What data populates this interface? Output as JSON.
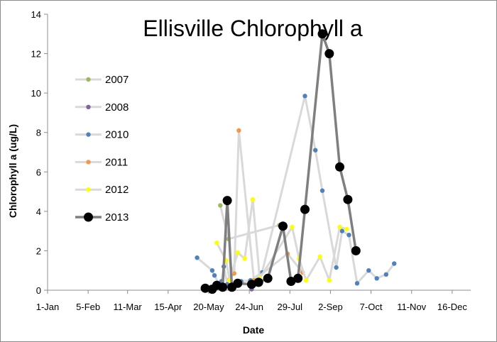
{
  "chart_data": {
    "type": "line",
    "title": "Ellisville Chlorophyll a",
    "xlabel": "Date",
    "ylabel": "Chlorophyll a (ug/L)",
    "x_axis": {
      "type": "date",
      "range": [
        "2013-01-01",
        "2013-12-31"
      ],
      "ticks": [
        {
          "date": "2013-01-01",
          "label": "1-Jan"
        },
        {
          "date": "2013-02-05",
          "label": "5-Feb"
        },
        {
          "date": "2013-03-11",
          "label": "11-Mar"
        },
        {
          "date": "2013-04-15",
          "label": "15-Apr"
        },
        {
          "date": "2013-05-20",
          "label": "20-May"
        },
        {
          "date": "2013-06-24",
          "label": "24-Jun"
        },
        {
          "date": "2013-07-29",
          "label": "29-Jul"
        },
        {
          "date": "2013-09-02",
          "label": "2-Sep"
        },
        {
          "date": "2013-10-07",
          "label": "7-Oct"
        },
        {
          "date": "2013-11-11",
          "label": "11-Nov"
        },
        {
          "date": "2013-12-16",
          "label": "16-Dec"
        }
      ]
    },
    "ylim": [
      0,
      14
    ],
    "y_ticks": [
      0,
      2,
      4,
      6,
      8,
      10,
      12,
      14
    ],
    "grid": false,
    "legend": {
      "placement": "left-inside"
    },
    "series": [
      {
        "name": "2007",
        "line_color": "#d9d9d9",
        "marker_color": "#9bbb59",
        "points": [
          {
            "x": "2013-05-30",
            "y": 4.3
          },
          {
            "x": "2013-06-06",
            "y": 2.6
          },
          {
            "x": "2013-07-20",
            "y": 3.3
          }
        ]
      },
      {
        "name": "2008",
        "line_color": "#d9d9d9",
        "marker_color": "#8064a2",
        "points": [
          {
            "x": "2013-06-26",
            "y": 0.05
          }
        ]
      },
      {
        "name": "2010",
        "line_color": "#d9d9d9",
        "marker_color": "#4f81bd",
        "points": [
          {
            "x": "2013-05-10",
            "y": 1.65
          },
          {
            "x": "2013-05-23",
            "y": 1.0
          },
          {
            "x": "2013-05-25",
            "y": 0.75
          },
          {
            "x": "2013-05-29",
            "y": 0.3
          },
          {
            "x": "2013-05-31",
            "y": 0.45
          },
          {
            "x": "2013-06-02",
            "y": 1.2
          },
          {
            "x": "2013-06-05",
            "y": 0.3
          },
          {
            "x": "2013-06-12",
            "y": 0.25
          },
          {
            "x": "2013-06-17",
            "y": 0.45
          },
          {
            "x": "2013-06-25",
            "y": 0.5
          },
          {
            "x": "2013-07-05",
            "y": 0.9
          },
          {
            "x": "2013-08-11",
            "y": 9.85
          },
          {
            "x": "2013-08-20",
            "y": 7.1
          },
          {
            "x": "2013-08-26",
            "y": 5.05
          },
          {
            "x": "2013-09-07",
            "y": 1.15
          },
          {
            "x": "2013-09-12",
            "y": 3.0
          },
          {
            "x": "2013-09-18",
            "y": 2.8
          },
          {
            "x": "2013-09-25",
            "y": 0.35
          },
          {
            "x": "2013-10-05",
            "y": 1.0
          },
          {
            "x": "2013-10-12",
            "y": 0.6
          },
          {
            "x": "2013-10-20",
            "y": 0.8
          },
          {
            "x": "2013-10-27",
            "y": 1.35
          }
        ]
      },
      {
        "name": "2011",
        "line_color": "#d9d9d9",
        "marker_color": "#f79646",
        "points": [
          {
            "x": "2013-06-07",
            "y": 0.55
          },
          {
            "x": "2013-06-11",
            "y": 0.85
          },
          {
            "x": "2013-06-15",
            "y": 8.1
          },
          {
            "x": "2013-06-28",
            "y": 0.5
          },
          {
            "x": "2013-07-27",
            "y": 1.85
          },
          {
            "x": "2013-08-09",
            "y": 0.9
          }
        ]
      },
      {
        "name": "2012",
        "line_color": "#d9d9d9",
        "marker_color": "#ffff00",
        "points": [
          {
            "x": "2013-05-27",
            "y": 2.4
          },
          {
            "x": "2013-06-04",
            "y": 1.5
          },
          {
            "x": "2013-06-07",
            "y": 0.5
          },
          {
            "x": "2013-06-14",
            "y": 1.9
          },
          {
            "x": "2013-06-20",
            "y": 1.6
          },
          {
            "x": "2013-06-27",
            "y": 4.6
          },
          {
            "x": "2013-07-03",
            "y": 0.6
          },
          {
            "x": "2013-07-31",
            "y": 3.2
          },
          {
            "x": "2013-08-06",
            "y": 1.6
          },
          {
            "x": "2013-08-12",
            "y": 0.5
          },
          {
            "x": "2013-08-24",
            "y": 1.7
          },
          {
            "x": "2013-09-01",
            "y": 0.5
          },
          {
            "x": "2013-09-10",
            "y": 3.2
          },
          {
            "x": "2013-09-16",
            "y": 3.1
          }
        ]
      },
      {
        "name": "2013",
        "line_color": "#7f7f7f",
        "marker_color": "#000000",
        "points": [
          {
            "x": "2013-05-17",
            "y": 0.1
          },
          {
            "x": "2013-05-23",
            "y": 0.05
          },
          {
            "x": "2013-05-27",
            "y": 0.25
          },
          {
            "x": "2013-06-01",
            "y": 0.15
          },
          {
            "x": "2013-06-05",
            "y": 4.55
          },
          {
            "x": "2013-06-09",
            "y": 0.15
          },
          {
            "x": "2013-06-14",
            "y": 0.35
          },
          {
            "x": "2013-06-26",
            "y": 0.3
          },
          {
            "x": "2013-07-02",
            "y": 0.4
          },
          {
            "x": "2013-07-10",
            "y": 0.6
          },
          {
            "x": "2013-07-23",
            "y": 3.25
          },
          {
            "x": "2013-07-30",
            "y": 0.45
          },
          {
            "x": "2013-08-05",
            "y": 0.6
          },
          {
            "x": "2013-08-11",
            "y": 4.1
          },
          {
            "x": "2013-08-26",
            "y": 13.0
          },
          {
            "x": "2013-09-01",
            "y": 12.0
          },
          {
            "x": "2013-09-10",
            "y": 6.25
          },
          {
            "x": "2013-09-17",
            "y": 4.6
          },
          {
            "x": "2013-09-24",
            "y": 2.0
          }
        ]
      }
    ]
  }
}
